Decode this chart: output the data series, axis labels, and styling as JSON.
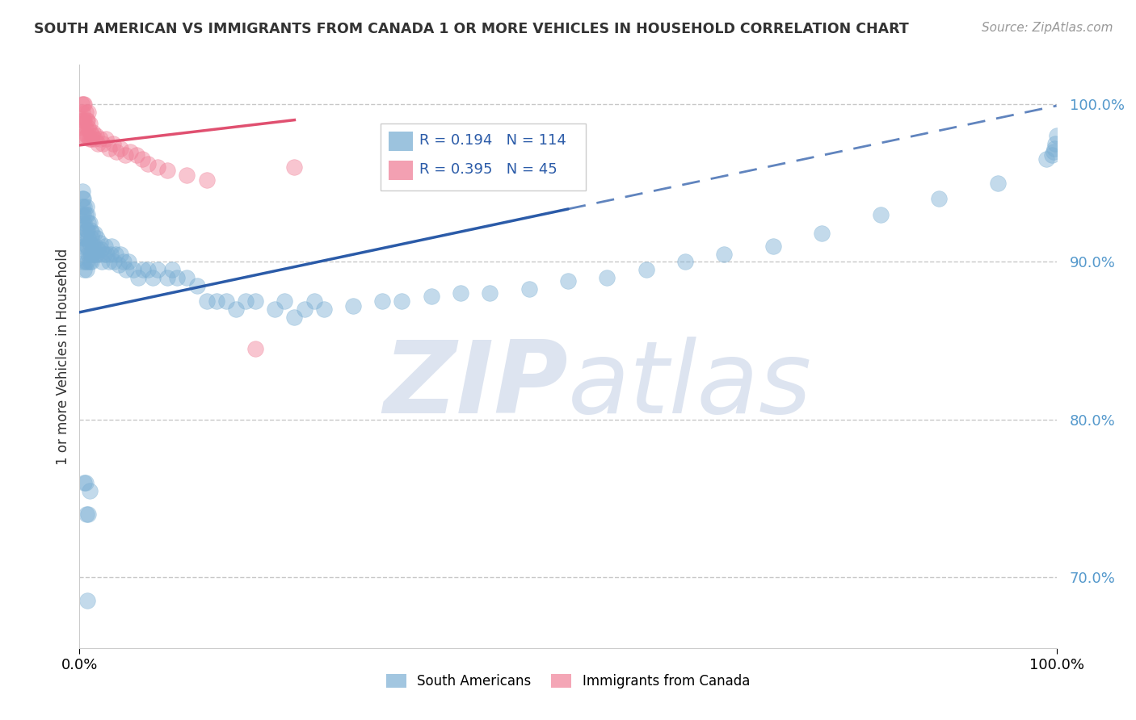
{
  "title": "SOUTH AMERICAN VS IMMIGRANTS FROM CANADA 1 OR MORE VEHICLES IN HOUSEHOLD CORRELATION CHART",
  "source": "Source: ZipAtlas.com",
  "ylabel": "1 or more Vehicles in Household",
  "xlim": [
    0.0,
    1.0
  ],
  "ylim": [
    0.655,
    1.025
  ],
  "yticks": [
    0.7,
    0.8,
    0.9,
    1.0
  ],
  "ytick_labels": [
    "70.0%",
    "80.0%",
    "90.0%",
    "100.0%"
  ],
  "xtick_labels": [
    "0.0%",
    "100.0%"
  ],
  "blue_R": 0.194,
  "blue_N": 114,
  "pink_R": 0.395,
  "pink_N": 45,
  "blue_color": "#7BAFD4",
  "pink_color": "#F08098",
  "blue_line_color": "#2B5BA8",
  "pink_line_color": "#E05070",
  "legend_blue_label": "South Americans",
  "legend_pink_label": "Immigrants from Canada",
  "blue_line_y0": 0.868,
  "blue_line_y1": 0.999,
  "pink_line_y0": 0.974,
  "pink_line_y1": 0.99,
  "pink_line_x1": 0.22,
  "background_color": "#FFFFFF",
  "watermark_color": "#DDE4F0",
  "blue_scatter_x": [
    0.002,
    0.002,
    0.003,
    0.003,
    0.003,
    0.003,
    0.003,
    0.004,
    0.004,
    0.004,
    0.004,
    0.005,
    0.005,
    0.005,
    0.005,
    0.006,
    0.006,
    0.006,
    0.007,
    0.007,
    0.007,
    0.007,
    0.008,
    0.008,
    0.008,
    0.008,
    0.009,
    0.009,
    0.009,
    0.01,
    0.01,
    0.01,
    0.011,
    0.011,
    0.012,
    0.012,
    0.013,
    0.013,
    0.014,
    0.015,
    0.015,
    0.016,
    0.017,
    0.018,
    0.019,
    0.02,
    0.021,
    0.022,
    0.023,
    0.025,
    0.026,
    0.028,
    0.03,
    0.032,
    0.033,
    0.035,
    0.037,
    0.04,
    0.042,
    0.045,
    0.048,
    0.05,
    0.055,
    0.06,
    0.065,
    0.07,
    0.075,
    0.08,
    0.09,
    0.095,
    0.1,
    0.11,
    0.12,
    0.13,
    0.14,
    0.15,
    0.16,
    0.17,
    0.18,
    0.2,
    0.21,
    0.22,
    0.23,
    0.24,
    0.25,
    0.28,
    0.31,
    0.33,
    0.36,
    0.39,
    0.42,
    0.46,
    0.5,
    0.54,
    0.58,
    0.62,
    0.66,
    0.71,
    0.76,
    0.82,
    0.88,
    0.94,
    0.99,
    0.995,
    0.997,
    0.998,
    0.999,
    1.0,
    0.005,
    0.006,
    0.007,
    0.008,
    0.009,
    0.01
  ],
  "blue_scatter_y": [
    0.92,
    0.93,
    0.91,
    0.925,
    0.935,
    0.94,
    0.945,
    0.9,
    0.915,
    0.93,
    0.94,
    0.895,
    0.91,
    0.925,
    0.935,
    0.9,
    0.915,
    0.93,
    0.895,
    0.91,
    0.92,
    0.935,
    0.9,
    0.91,
    0.92,
    0.93,
    0.905,
    0.915,
    0.925,
    0.9,
    0.912,
    0.925,
    0.905,
    0.92,
    0.9,
    0.915,
    0.905,
    0.918,
    0.91,
    0.905,
    0.918,
    0.91,
    0.905,
    0.915,
    0.908,
    0.905,
    0.912,
    0.908,
    0.9,
    0.905,
    0.91,
    0.905,
    0.9,
    0.905,
    0.91,
    0.9,
    0.905,
    0.898,
    0.905,
    0.9,
    0.895,
    0.9,
    0.895,
    0.89,
    0.895,
    0.895,
    0.89,
    0.895,
    0.89,
    0.895,
    0.89,
    0.89,
    0.885,
    0.875,
    0.875,
    0.875,
    0.87,
    0.875,
    0.875,
    0.87,
    0.875,
    0.865,
    0.87,
    0.875,
    0.87,
    0.872,
    0.875,
    0.875,
    0.878,
    0.88,
    0.88,
    0.883,
    0.888,
    0.89,
    0.895,
    0.9,
    0.905,
    0.91,
    0.918,
    0.93,
    0.94,
    0.95,
    0.965,
    0.968,
    0.97,
    0.972,
    0.975,
    0.98,
    0.76,
    0.76,
    0.74,
    0.685,
    0.74,
    0.755
  ],
  "pink_scatter_x": [
    0.002,
    0.002,
    0.003,
    0.003,
    0.004,
    0.004,
    0.004,
    0.005,
    0.005,
    0.005,
    0.006,
    0.006,
    0.007,
    0.007,
    0.008,
    0.008,
    0.009,
    0.009,
    0.01,
    0.01,
    0.011,
    0.012,
    0.013,
    0.014,
    0.015,
    0.017,
    0.019,
    0.021,
    0.024,
    0.027,
    0.03,
    0.034,
    0.038,
    0.042,
    0.047,
    0.052,
    0.058,
    0.064,
    0.07,
    0.08,
    0.09,
    0.11,
    0.13,
    0.18,
    0.22
  ],
  "pink_scatter_y": [
    0.99,
    1.0,
    0.985,
    0.995,
    0.98,
    0.99,
    1.0,
    0.98,
    0.99,
    1.0,
    0.985,
    0.995,
    0.98,
    0.99,
    0.98,
    0.99,
    0.985,
    0.995,
    0.978,
    0.988,
    0.982,
    0.978,
    0.98,
    0.982,
    0.978,
    0.98,
    0.975,
    0.978,
    0.975,
    0.978,
    0.972,
    0.975,
    0.97,
    0.972,
    0.968,
    0.97,
    0.968,
    0.965,
    0.962,
    0.96,
    0.958,
    0.955,
    0.952,
    0.845,
    0.96
  ]
}
